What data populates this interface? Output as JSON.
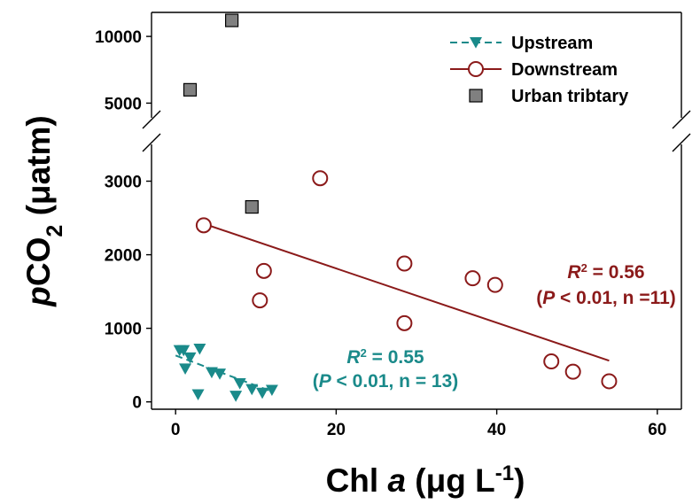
{
  "chart_data": {
    "type": "scatter",
    "xlabel": {
      "main": "Chl ",
      "italic": "a",
      "unit_open": " (",
      "mu": "μ",
      "unit": "g L",
      "sup": "-1",
      "close": ")"
    },
    "ylabel": {
      "italic": "p",
      "main": "CO",
      "sub": "2",
      "unit": " (μatm)"
    },
    "x_ticks": [
      0,
      20,
      40,
      60
    ],
    "y_ticks_lower": [
      0,
      1000,
      2000,
      3000
    ],
    "y_ticks_upper": [
      5000,
      10000
    ],
    "xlim": [
      -3,
      63
    ],
    "ylim_lower": [
      -100,
      3500
    ],
    "ylim_upper": [
      3900,
      11800
    ],
    "axis_break": true,
    "legend_position": "top-right",
    "series": [
      {
        "name": "Upstream",
        "marker": "triangle-down",
        "color": "#1a8a8a",
        "line": "dashed",
        "points": [
          [
            0.5,
            700
          ],
          [
            1.0,
            700
          ],
          [
            1.2,
            450
          ],
          [
            1.8,
            600
          ],
          [
            2.8,
            100
          ],
          [
            3.0,
            720
          ],
          [
            4.5,
            400
          ],
          [
            5.5,
            380
          ],
          [
            7.5,
            80
          ],
          [
            8.0,
            250
          ],
          [
            9.5,
            170
          ],
          [
            10.8,
            120
          ],
          [
            12.0,
            160
          ]
        ],
        "fit": [
          [
            0,
            630
          ],
          [
            12,
            140
          ]
        ]
      },
      {
        "name": "Downstream",
        "marker": "circle-open",
        "color": "#8b1a1a",
        "line": "solid",
        "points": [
          [
            3.5,
            2400
          ],
          [
            10.5,
            1380
          ],
          [
            11.0,
            1780
          ],
          [
            18.0,
            3040
          ],
          [
            28.5,
            1880
          ],
          [
            28.5,
            1070
          ],
          [
            37.0,
            1680
          ],
          [
            39.8,
            1590
          ],
          [
            46.8,
            550
          ],
          [
            49.5,
            410
          ],
          [
            54.0,
            280
          ]
        ],
        "fit": [
          [
            3.0,
            2440
          ],
          [
            54.0,
            560
          ]
        ]
      },
      {
        "name": "Urban tribtary",
        "marker": "square",
        "color": "#808080",
        "line": "none",
        "points": [
          [
            1.8,
            6000
          ],
          [
            7.0,
            11200
          ],
          [
            9.5,
            2650
          ]
        ]
      }
    ],
    "annotations": [
      {
        "series": "Upstream",
        "color": "#1a8a8a",
        "r2": {
          "R": "R",
          "sup": "2",
          "rest": " = 0.55"
        },
        "stats": {
          "open": "(",
          "P": "P",
          "rest": " < 0.01, n = 13)"
        }
      },
      {
        "series": "Downstream",
        "color": "#8b1a1a",
        "r2": {
          "R": "R",
          "sup": "2",
          "rest": " = 0.56"
        },
        "stats": {
          "open": "(",
          "P": "P",
          "rest": " < 0.01, n =11)"
        }
      }
    ]
  }
}
